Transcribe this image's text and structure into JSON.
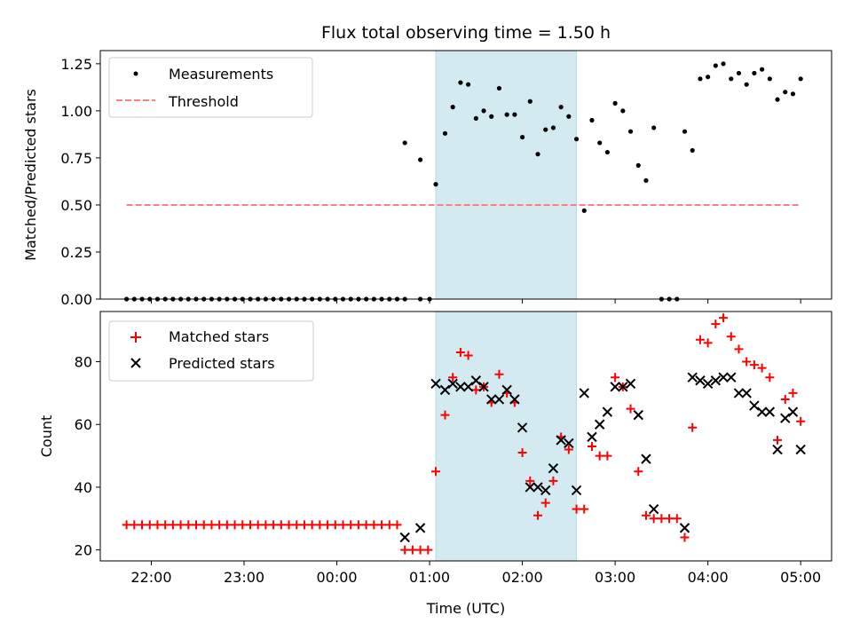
{
  "chart_data": [
    {
      "type": "scatter",
      "title": "Flux total observing time = 1.50 h",
      "xlabel": "",
      "ylabel": "Matched/Predicted stars",
      "ylim": [
        0,
        1.32
      ],
      "xlim": [
        "21:27",
        "05:20"
      ],
      "x_tick_labels": [
        "22:00",
        "23:00",
        "00:00",
        "01:00",
        "02:00",
        "03:00",
        "04:00",
        "05:00"
      ],
      "y_tick_labels": [
        "0.00",
        "0.25",
        "0.50",
        "0.75",
        "1.00",
        "1.25"
      ],
      "shaded_interval": {
        "start": "01:04",
        "end": "02:35",
        "color": "#d4eaf1"
      },
      "legend": {
        "position": "top-left"
      },
      "series": [
        {
          "name": "Measurements",
          "kind": "scatter",
          "marker": "dot",
          "color": "#000000",
          "points": [
            [
              "21:44",
              0
            ],
            [
              "21:49",
              0
            ],
            [
              "21:54",
              0
            ],
            [
              "21:59",
              0
            ],
            [
              "22:04",
              0
            ],
            [
              "22:09",
              0
            ],
            [
              "22:14",
              0
            ],
            [
              "22:19",
              0
            ],
            [
              "22:24",
              0
            ],
            [
              "22:29",
              0
            ],
            [
              "22:34",
              0
            ],
            [
              "22:39",
              0
            ],
            [
              "22:44",
              0
            ],
            [
              "22:49",
              0
            ],
            [
              "22:54",
              0
            ],
            [
              "22:59",
              0
            ],
            [
              "23:04",
              0
            ],
            [
              "23:09",
              0
            ],
            [
              "23:14",
              0
            ],
            [
              "23:19",
              0
            ],
            [
              "23:24",
              0
            ],
            [
              "23:29",
              0
            ],
            [
              "23:34",
              0
            ],
            [
              "23:39",
              0
            ],
            [
              "23:44",
              0
            ],
            [
              "23:49",
              0
            ],
            [
              "23:54",
              0
            ],
            [
              "23:59",
              0
            ],
            [
              "00:04",
              0
            ],
            [
              "00:09",
              0
            ],
            [
              "00:14",
              0
            ],
            [
              "00:19",
              0
            ],
            [
              "00:24",
              0
            ],
            [
              "00:29",
              0
            ],
            [
              "00:34",
              0
            ],
            [
              "00:39",
              0
            ],
            [
              "00:44",
              0
            ],
            [
              "00:54",
              0
            ],
            [
              "01:00",
              0
            ],
            [
              "00:44",
              0.83
            ],
            [
              "00:54",
              0.74
            ],
            [
              "01:04",
              0.61
            ],
            [
              "01:10",
              0.88
            ],
            [
              "01:15",
              1.02
            ],
            [
              "01:20",
              1.15
            ],
            [
              "01:25",
              1.14
            ],
            [
              "01:30",
              0.96
            ],
            [
              "01:35",
              1.0
            ],
            [
              "01:40",
              0.97
            ],
            [
              "01:45",
              1.12
            ],
            [
              "01:50",
              0.98
            ],
            [
              "01:55",
              0.98
            ],
            [
              "02:00",
              0.86
            ],
            [
              "02:05",
              1.05
            ],
            [
              "02:10",
              0.77
            ],
            [
              "02:15",
              0.9
            ],
            [
              "02:20",
              0.91
            ],
            [
              "02:25",
              1.02
            ],
            [
              "02:30",
              0.97
            ],
            [
              "02:35",
              0.85
            ],
            [
              "02:40",
              0.47
            ],
            [
              "02:45",
              0.95
            ],
            [
              "02:50",
              0.83
            ],
            [
              "02:55",
              0.78
            ],
            [
              "03:00",
              1.04
            ],
            [
              "03:05",
              1.0
            ],
            [
              "03:10",
              0.89
            ],
            [
              "03:15",
              0.71
            ],
            [
              "03:20",
              0.63
            ],
            [
              "03:25",
              0.91
            ],
            [
              "03:30",
              0
            ],
            [
              "03:35",
              0
            ],
            [
              "03:40",
              0
            ],
            [
              "03:45",
              0.89
            ],
            [
              "03:50",
              0.79
            ],
            [
              "03:55",
              1.17
            ],
            [
              "04:00",
              1.18
            ],
            [
              "04:05",
              1.24
            ],
            [
              "04:10",
              1.25
            ],
            [
              "04:15",
              1.17
            ],
            [
              "04:20",
              1.2
            ],
            [
              "04:25",
              1.14
            ],
            [
              "04:30",
              1.2
            ],
            [
              "04:35",
              1.22
            ],
            [
              "04:40",
              1.17
            ],
            [
              "04:45",
              1.06
            ],
            [
              "04:50",
              1.1
            ],
            [
              "04:55",
              1.09
            ],
            [
              "05:00",
              1.17
            ]
          ]
        },
        {
          "name": "Threshold",
          "kind": "line",
          "style": "dashed",
          "color": "#ff7f7f",
          "points": [
            [
              "21:44",
              0.5
            ],
            [
              "05:00",
              0.5
            ]
          ]
        }
      ]
    },
    {
      "type": "scatter",
      "title": "",
      "xlabel": "Time (UTC)",
      "ylabel": "Count",
      "ylim": [
        16.5,
        96
      ],
      "xlim": [
        "21:27",
        "05:20"
      ],
      "x_tick_labels": [
        "22:00",
        "23:00",
        "00:00",
        "01:00",
        "02:00",
        "03:00",
        "04:00",
        "05:00"
      ],
      "y_tick_labels": [
        "20",
        "40",
        "60",
        "80"
      ],
      "shaded_interval": {
        "start": "01:04",
        "end": "02:35",
        "color": "#d4eaf1"
      },
      "legend": {
        "position": "top-left"
      },
      "series": [
        {
          "name": "Matched stars",
          "kind": "scatter",
          "marker": "plus",
          "color": "#ff0000",
          "points": [
            [
              "21:44",
              28
            ],
            [
              "21:49",
              28
            ],
            [
              "21:54",
              28
            ],
            [
              "21:59",
              28
            ],
            [
              "22:04",
              28
            ],
            [
              "22:09",
              28
            ],
            [
              "22:14",
              28
            ],
            [
              "22:19",
              28
            ],
            [
              "22:24",
              28
            ],
            [
              "22:29",
              28
            ],
            [
              "22:34",
              28
            ],
            [
              "22:39",
              28
            ],
            [
              "22:44",
              28
            ],
            [
              "22:49",
              28
            ],
            [
              "22:54",
              28
            ],
            [
              "22:59",
              28
            ],
            [
              "23:04",
              28
            ],
            [
              "23:09",
              28
            ],
            [
              "23:14",
              28
            ],
            [
              "23:19",
              28
            ],
            [
              "23:24",
              28
            ],
            [
              "23:29",
              28
            ],
            [
              "23:34",
              28
            ],
            [
              "23:39",
              28
            ],
            [
              "23:44",
              28
            ],
            [
              "23:49",
              28
            ],
            [
              "23:54",
              28
            ],
            [
              "23:59",
              28
            ],
            [
              "00:04",
              28
            ],
            [
              "00:09",
              28
            ],
            [
              "00:14",
              28
            ],
            [
              "00:19",
              28
            ],
            [
              "00:24",
              28
            ],
            [
              "00:29",
              28
            ],
            [
              "00:34",
              28
            ],
            [
              "00:39",
              28
            ],
            [
              "00:44",
              20
            ],
            [
              "00:49",
              20
            ],
            [
              "00:54",
              20
            ],
            [
              "00:59",
              20
            ],
            [
              "01:04",
              45
            ],
            [
              "01:10",
              63
            ],
            [
              "01:15",
              75
            ],
            [
              "01:20",
              83
            ],
            [
              "01:25",
              82
            ],
            [
              "01:30",
              71
            ],
            [
              "01:35",
              72
            ],
            [
              "01:40",
              67
            ],
            [
              "01:45",
              76
            ],
            [
              "01:50",
              70
            ],
            [
              "01:55",
              67
            ],
            [
              "02:00",
              51
            ],
            [
              "02:05",
              42
            ],
            [
              "02:10",
              31
            ],
            [
              "02:15",
              35
            ],
            [
              "02:20",
              42
            ],
            [
              "02:25",
              56
            ],
            [
              "02:30",
              52
            ],
            [
              "02:35",
              33
            ],
            [
              "02:40",
              33
            ],
            [
              "02:45",
              53
            ],
            [
              "02:50",
              50
            ],
            [
              "02:55",
              50
            ],
            [
              "03:00",
              75
            ],
            [
              "03:05",
              72
            ],
            [
              "03:10",
              65
            ],
            [
              "03:15",
              45
            ],
            [
              "03:20",
              31
            ],
            [
              "03:25",
              30
            ],
            [
              "03:30",
              30
            ],
            [
              "03:35",
              30
            ],
            [
              "03:40",
              30
            ],
            [
              "03:45",
              24
            ],
            [
              "03:50",
              59
            ],
            [
              "03:55",
              87
            ],
            [
              "04:00",
              86
            ],
            [
              "04:05",
              92
            ],
            [
              "04:10",
              94
            ],
            [
              "04:15",
              88
            ],
            [
              "04:20",
              84
            ],
            [
              "04:25",
              80
            ],
            [
              "04:30",
              79
            ],
            [
              "04:35",
              78
            ],
            [
              "04:40",
              75
            ],
            [
              "04:45",
              55
            ],
            [
              "04:50",
              68
            ],
            [
              "04:55",
              70
            ],
            [
              "05:00",
              61
            ]
          ]
        },
        {
          "name": "Predicted stars",
          "kind": "scatter",
          "marker": "x",
          "color": "#000000",
          "points": [
            [
              "00:44",
              24
            ],
            [
              "00:54",
              27
            ],
            [
              "01:04",
              73
            ],
            [
              "01:10",
              71
            ],
            [
              "01:15",
              73
            ],
            [
              "01:20",
              72
            ],
            [
              "01:25",
              72
            ],
            [
              "01:30",
              74
            ],
            [
              "01:35",
              72
            ],
            [
              "01:40",
              68
            ],
            [
              "01:45",
              68
            ],
            [
              "01:50",
              71
            ],
            [
              "01:55",
              68
            ],
            [
              "02:00",
              59
            ],
            [
              "02:05",
              40
            ],
            [
              "02:10",
              40
            ],
            [
              "02:15",
              39
            ],
            [
              "02:20",
              46
            ],
            [
              "02:25",
              55
            ],
            [
              "02:30",
              54
            ],
            [
              "02:35",
              39
            ],
            [
              "02:40",
              70
            ],
            [
              "02:45",
              56
            ],
            [
              "02:50",
              60
            ],
            [
              "02:55",
              64
            ],
            [
              "03:00",
              72
            ],
            [
              "03:05",
              72
            ],
            [
              "03:10",
              73
            ],
            [
              "03:15",
              63
            ],
            [
              "03:20",
              49
            ],
            [
              "03:25",
              33
            ],
            [
              "03:45",
              27
            ],
            [
              "03:50",
              75
            ],
            [
              "03:55",
              74
            ],
            [
              "04:00",
              73
            ],
            [
              "04:05",
              74
            ],
            [
              "04:10",
              75
            ],
            [
              "04:15",
              75
            ],
            [
              "04:20",
              70
            ],
            [
              "04:25",
              70
            ],
            [
              "04:30",
              66
            ],
            [
              "04:35",
              64
            ],
            [
              "04:40",
              64
            ],
            [
              "04:45",
              52
            ],
            [
              "04:50",
              62
            ],
            [
              "04:55",
              64
            ],
            [
              "05:00",
              52
            ]
          ]
        }
      ]
    }
  ]
}
